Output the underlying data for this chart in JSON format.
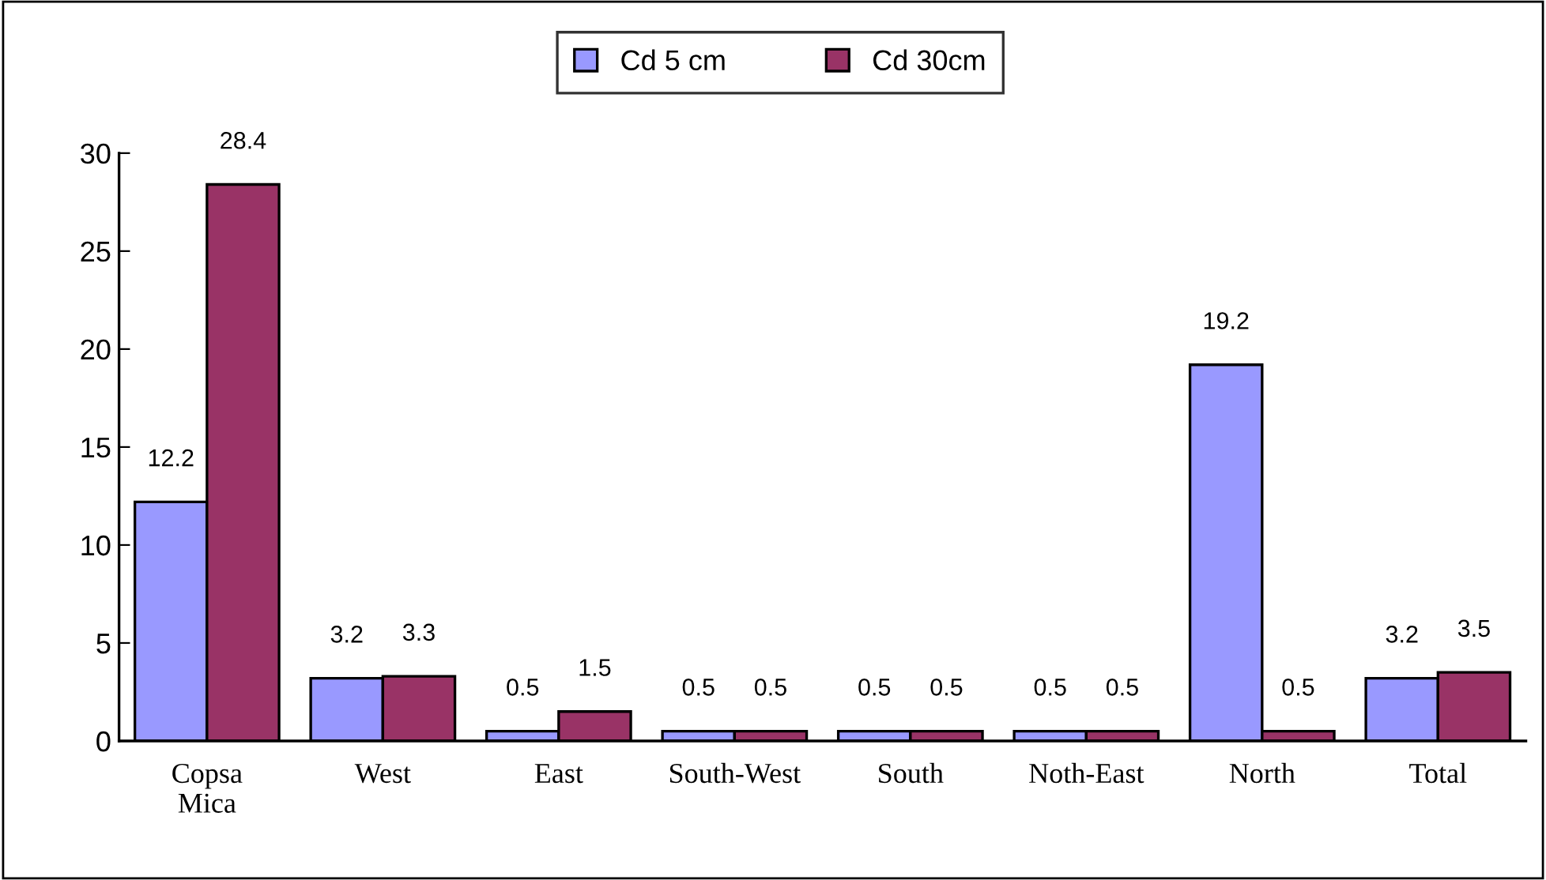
{
  "chart_data": {
    "type": "bar",
    "categories": [
      "Copsa\nMica",
      "West",
      "East",
      "South-West",
      "South",
      "Noth-East",
      "North",
      "Total"
    ],
    "series": [
      {
        "name": "Cd 5 cm",
        "color": "#9999ff",
        "values": [
          12.2,
          3.2,
          0.5,
          0.5,
          0.5,
          0.5,
          19.2,
          3.2
        ]
      },
      {
        "name": "Cd 30cm",
        "color": "#993366",
        "values": [
          28.4,
          3.3,
          1.5,
          0.5,
          0.5,
          0.5,
          0.5,
          3.5
        ]
      }
    ],
    "ylim": [
      0,
      30
    ],
    "yticks": [
      0,
      5,
      10,
      15,
      20,
      25,
      30
    ],
    "grid": false,
    "legend": "top",
    "data_labels": true
  }
}
